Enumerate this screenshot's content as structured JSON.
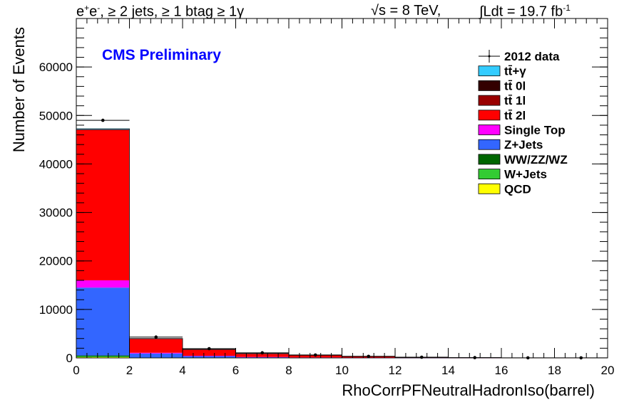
{
  "header": {
    "selection_prefix": "e",
    "selection_sup1": "+",
    "selection_mid": "e",
    "selection_sup2": "-",
    "selection_rest": ", ≥ 2 jets, ≥ 1 btag ≥ 1γ",
    "energy": "√s = 8 TeV,",
    "lumi_prefix": "∫Ldt = 19.7 fb",
    "lumi_sup": "-1"
  },
  "chart_data": {
    "type": "bar",
    "stacked": true,
    "title": "CMS Preliminary",
    "title_color": "#0000ff",
    "xlabel": "RhoCorrPFNeutralHadronIso(barrel)",
    "ylabel": "Number of Events",
    "xlim": [
      0,
      20
    ],
    "ylim": [
      0,
      70000
    ],
    "x_ticks": [
      0,
      2,
      4,
      6,
      8,
      10,
      12,
      14,
      16,
      18,
      20
    ],
    "y_ticks": [
      0,
      10000,
      20000,
      30000,
      40000,
      50000,
      60000
    ],
    "bin_edges": [
      0,
      2,
      4,
      6,
      8,
      10,
      12,
      14,
      16,
      18,
      20
    ],
    "series": [
      {
        "name": "QCD",
        "color": "#ffff00",
        "values": [
          150,
          20,
          10,
          5,
          0,
          0,
          0,
          0,
          0,
          0
        ]
      },
      {
        "name": "W+Jets",
        "color": "#33cc33",
        "values": [
          150,
          20,
          10,
          5,
          0,
          0,
          0,
          0,
          0,
          0
        ]
      },
      {
        "name": "WW/ZZ/WZ",
        "color": "#006600",
        "values": [
          200,
          20,
          10,
          5,
          0,
          0,
          0,
          0,
          0,
          0
        ]
      },
      {
        "name": "Z+Jets",
        "color": "#3366ff",
        "values": [
          14000,
          850,
          350,
          150,
          80,
          40,
          20,
          10,
          5,
          0
        ]
      },
      {
        "name": "Single Top",
        "color": "#ff00ff",
        "values": [
          1500,
          150,
          60,
          30,
          15,
          8,
          4,
          2,
          0,
          0
        ]
      },
      {
        "name": "tt̄ 2l",
        "color": "#ff0000",
        "values": [
          31000,
          2900,
          1300,
          700,
          450,
          250,
          100,
          40,
          10,
          5
        ]
      },
      {
        "name": "tt̄ 1l",
        "color": "#990000",
        "values": [
          50,
          10,
          5,
          2,
          0,
          0,
          0,
          0,
          0,
          0
        ]
      },
      {
        "name": "tt̄ 0l",
        "color": "#330000",
        "values": [
          50,
          10,
          5,
          2,
          0,
          0,
          0,
          0,
          0,
          0
        ]
      },
      {
        "name": "tt̄+γ",
        "color": "#33ccff",
        "values": [
          150,
          20,
          10,
          5,
          0,
          0,
          0,
          0,
          0,
          0
        ]
      }
    ],
    "data_points": {
      "name": "2012 data",
      "x": [
        1,
        3,
        5,
        7,
        9,
        11,
        13,
        15,
        17,
        19
      ],
      "y": [
        49000,
        4300,
        1900,
        1050,
        600,
        330,
        140,
        60,
        20,
        10
      ]
    },
    "legend": {
      "position": "top-right",
      "entries": [
        {
          "label": "2012 data",
          "kind": "data"
        },
        {
          "label": "tt̄+γ",
          "kind": "fill",
          "color": "#33ccff"
        },
        {
          "label": "tt̄ 0l",
          "kind": "fill",
          "color": "#330000"
        },
        {
          "label": "tt̄ 1l",
          "kind": "fill",
          "color": "#990000"
        },
        {
          "label": "tt̄ 2l",
          "kind": "fill",
          "color": "#ff0000"
        },
        {
          "label": "Single Top",
          "kind": "fill",
          "color": "#ff00ff"
        },
        {
          "label": "Z+Jets",
          "kind": "fill",
          "color": "#3366ff"
        },
        {
          "label": "WW/ZZ/WZ",
          "kind": "fill",
          "color": "#006600"
        },
        {
          "label": "W+Jets",
          "kind": "fill",
          "color": "#33cc33"
        },
        {
          "label": "QCD",
          "kind": "fill",
          "color": "#ffff00"
        }
      ]
    }
  }
}
